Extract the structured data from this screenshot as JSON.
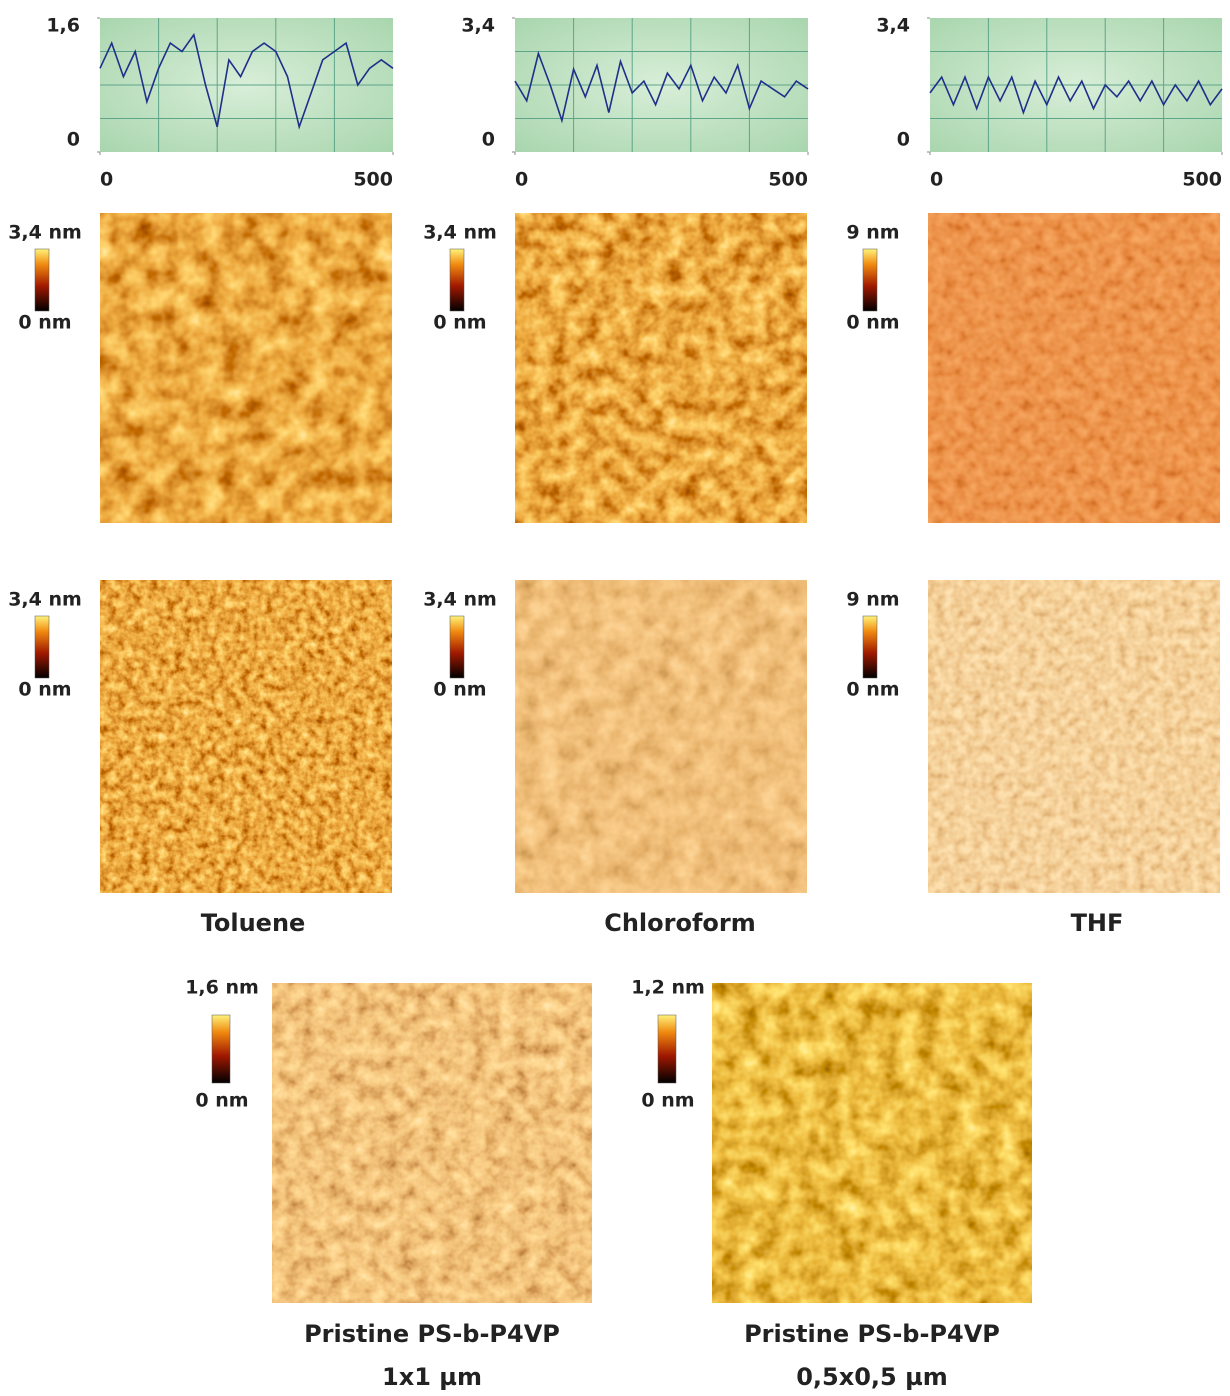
{
  "chart_data": [
    {
      "type": "line",
      "color": "#1f2f8a",
      "x": [
        0,
        20,
        40,
        60,
        80,
        100,
        120,
        140,
        160,
        180,
        200,
        220,
        240,
        260,
        280,
        300,
        320,
        340,
        360,
        380,
        400,
        420,
        440,
        460,
        480,
        500
      ],
      "values": [
        1.0,
        1.3,
        0.9,
        1.2,
        0.6,
        1.0,
        1.3,
        1.2,
        1.4,
        0.8,
        0.3,
        1.1,
        0.9,
        1.2,
        1.3,
        1.2,
        0.9,
        0.3,
        0.7,
        1.1,
        1.2,
        1.3,
        0.8,
        1.0,
        1.1,
        1.0
      ],
      "xlim": [
        0,
        500
      ],
      "xticks": [
        0,
        500
      ],
      "ylim": [
        0,
        1.6
      ],
      "yticks": [
        0,
        {
          "value": 1.6,
          "label": "1,6"
        }
      ]
    },
    {
      "type": "line",
      "color": "#1f2f8a",
      "x": [
        0,
        20,
        40,
        60,
        80,
        100,
        120,
        140,
        160,
        180,
        200,
        220,
        240,
        260,
        280,
        300,
        320,
        340,
        360,
        380,
        400,
        420,
        440,
        460,
        480,
        500
      ],
      "values": [
        1.8,
        1.3,
        2.5,
        1.7,
        0.8,
        2.1,
        1.4,
        2.2,
        1.0,
        2.3,
        1.5,
        1.8,
        1.2,
        2.0,
        1.6,
        2.2,
        1.3,
        1.9,
        1.5,
        2.2,
        1.1,
        1.8,
        1.6,
        1.4,
        1.8,
        1.6
      ],
      "xlim": [
        0,
        500
      ],
      "xticks": [
        0,
        500
      ],
      "ylim": [
        0,
        3.4
      ],
      "yticks": [
        0,
        {
          "value": 3.4,
          "label": "3,4"
        }
      ]
    },
    {
      "type": "line",
      "color": "#1f2f8a",
      "x": [
        0,
        20,
        40,
        60,
        80,
        100,
        120,
        140,
        160,
        180,
        200,
        220,
        240,
        260,
        280,
        300,
        320,
        340,
        360,
        380,
        400,
        420,
        440,
        460,
        480,
        500
      ],
      "values": [
        1.5,
        1.9,
        1.2,
        1.9,
        1.1,
        1.9,
        1.3,
        1.9,
        1.0,
        1.8,
        1.2,
        1.9,
        1.3,
        1.8,
        1.1,
        1.7,
        1.4,
        1.8,
        1.3,
        1.8,
        1.2,
        1.7,
        1.3,
        1.8,
        1.2,
        1.6
      ],
      "xlim": [
        0,
        500
      ],
      "xticks": [
        0,
        500
      ],
      "ylim": [
        0,
        3.4
      ],
      "yticks": [
        0,
        {
          "value": 3.4,
          "label": "3,4"
        }
      ]
    }
  ],
  "panels": [
    [
      {
        "scale_max": "3,4 nm",
        "scale_min": "0 nm"
      },
      {
        "scale_max": "3,4 nm",
        "scale_min": "0 nm"
      },
      {
        "scale_max": "9 nm",
        "scale_min": "0 nm"
      }
    ],
    [
      {
        "scale_max": "3,4 nm",
        "scale_min": "0 nm"
      },
      {
        "scale_max": "3,4 nm",
        "scale_min": "0 nm"
      },
      {
        "scale_max": "9 nm",
        "scale_min": "0 nm"
      }
    ]
  ],
  "captions": [
    "Toluene",
    "Chloroform",
    "THF"
  ],
  "pristine": [
    {
      "scale_max": "1,6 nm",
      "scale_min": "0 nm",
      "caption": "Pristine PS-b-P4VP",
      "size": "1x1 µm"
    },
    {
      "scale_max": "1,2 nm",
      "scale_min": "0 nm",
      "caption": "Pristine PS-b-P4VP",
      "size": "0,5x0,5 µm"
    }
  ]
}
